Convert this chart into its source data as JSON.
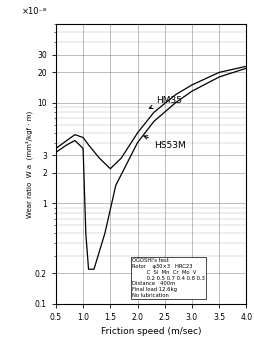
{
  "xlabel": "Friction speed (m/sec)",
  "ylabel": "Wear ratio  W a  (mm³/kgf · m)",
  "x_label_top": "×10⁻⁸",
  "xlim": [
    0.5,
    4.0
  ],
  "ylim_log": [
    0.1,
    60
  ],
  "x_ticks": [
    0.5,
    1.0,
    1.5,
    2.0,
    2.5,
    3.0,
    3.5,
    4.0
  ],
  "annotation_text": "OGOSHI's test\nRotor    φ30×3   HRC23\n         C  Si  Mn  Cr  Mo  V\n         0.2 0.5 0.7 0.4 0.8 0.3\nDistance   400m\nFinal load 12.6kg\nNo lubrication",
  "HM35_label": "HM35",
  "HS53M_label": "HS53M",
  "HM35_x": [
    0.5,
    0.7,
    0.85,
    1.0,
    1.1,
    1.3,
    1.5,
    1.7,
    2.0,
    2.3,
    2.7,
    3.0,
    3.5,
    4.0
  ],
  "HM35_y": [
    3.5,
    4.2,
    4.8,
    4.5,
    3.8,
    2.8,
    2.2,
    2.8,
    5.0,
    8.0,
    12.0,
    15.0,
    20.0,
    23.0
  ],
  "HS53M_x": [
    0.5,
    0.7,
    0.85,
    1.0,
    1.05,
    1.1,
    1.2,
    1.4,
    1.6,
    2.0,
    2.3,
    2.7,
    3.0,
    3.5,
    4.0
  ],
  "HS53M_y": [
    3.2,
    3.8,
    4.2,
    3.5,
    0.5,
    0.22,
    0.22,
    0.5,
    1.5,
    4.0,
    6.5,
    10.0,
    13.0,
    18.0,
    22.0
  ],
  "yticks_major": [
    0.1,
    0.2,
    1,
    2,
    3,
    10,
    20,
    30
  ],
  "ytick_labels": {
    "0.1": "0.1",
    "0.2": "0.2",
    "1": "1",
    "2": "2",
    "3": "3",
    "10": "10",
    "20": "20",
    "30": "30"
  },
  "line_color": "#000000",
  "grid_color": "#666666"
}
